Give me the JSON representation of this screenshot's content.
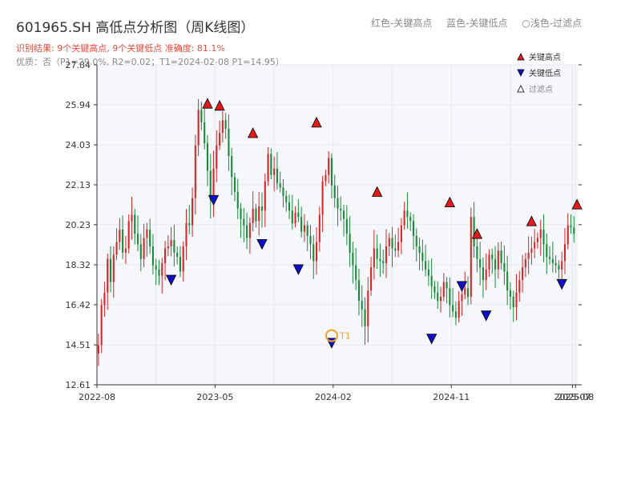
{
  "header": {
    "title": "601965.SH 高低点分析图（周K线图）",
    "legend_red": "红色-关键高点",
    "legend_blue": "蓝色-关键低点",
    "legend_filtered": "○浅色-过滤点",
    "result_text": "识别结果: 9个关键高点, 9个关键低点  准确度: 81.1%",
    "quality_text": "优质：否（P1=29.0%, R2=0.02；T1=2024-02-08 P1=14.95）"
  },
  "legend": {
    "high_label": "关键高点",
    "low_label": "关键低点",
    "filtered_label": "过滤点"
  },
  "colors": {
    "up": "#d62728",
    "down": "#1a8a3a",
    "high_marker": "#e31a1c",
    "low_marker": "#1010c8",
    "t1_marker": "#f0a030",
    "plot_bg": "#f5f7fa"
  },
  "chart_data": {
    "type": "candlestick",
    "y_ticks": [
      "12.61",
      "14.51",
      "16.42",
      "18.32",
      "20.23",
      "22.13",
      "24.03",
      "25.94",
      "27.84"
    ],
    "ylim": [
      12.61,
      27.84
    ],
    "x_ticks": [
      {
        "label": "2022-08",
        "week": 0
      },
      {
        "label": "2023-05",
        "week": 39
      },
      {
        "label": "2024-02",
        "week": 78
      },
      {
        "label": "2024-11",
        "week": 117
      },
      {
        "label": "2025-07",
        "week": 157
      },
      {
        "label": "2025-08",
        "week": 158
      }
    ],
    "x_range": [
      0,
      159
    ],
    "series_closes": [
      14.5,
      16.4,
      17.0,
      18.6,
      17.5,
      18.8,
      19.4,
      20.0,
      18.9,
      19.1,
      20.4,
      20.7,
      19.8,
      19.3,
      18.6,
      19.6,
      20.0,
      19.2,
      18.3,
      18.1,
      17.8,
      18.4,
      19.1,
      19.2,
      19.5,
      18.9,
      18.7,
      18.0,
      19.2,
      20.3,
      20.2,
      21.5,
      24.0,
      25.7,
      25.1,
      24.1,
      22.8,
      21.4,
      22.9,
      24.0,
      24.6,
      25.2,
      24.8,
      23.5,
      22.5,
      21.8,
      21.0,
      20.5,
      20.2,
      19.6,
      20.3,
      21.0,
      20.4,
      21.1,
      20.9,
      22.3,
      23.6,
      22.6,
      22.9,
      22.2,
      22.0,
      21.6,
      21.3,
      20.9,
      20.3,
      20.8,
      20.6,
      19.9,
      20.2,
      19.7,
      19.3,
      18.5,
      19.4,
      20.7,
      22.3,
      22.6,
      23.4,
      22.1,
      21.5,
      21.0,
      20.9,
      20.5,
      19.8,
      18.9,
      18.3,
      17.6,
      16.6,
      16.2,
      15.4,
      17.1,
      18.2,
      19.1,
      18.6,
      18.5,
      18.4,
      19.2,
      19.6,
      19.1,
      19.0,
      19.4,
      20.2,
      20.9,
      20.6,
      20.4,
      19.7,
      19.2,
      18.9,
      18.5,
      18.1,
      17.8,
      17.3,
      17.0,
      16.6,
      16.8,
      17.5,
      17.2,
      16.4,
      16.1,
      15.8,
      16.6,
      16.9,
      17.2,
      16.8,
      20.6,
      19.2,
      18.6,
      18.2,
      17.6,
      18.1,
      18.8,
      18.6,
      18.1,
      19.0,
      18.4,
      18.0,
      17.1,
      16.8,
      16.3,
      17.0,
      17.6,
      18.2,
      18.6,
      18.9,
      19.1,
      19.4,
      19.6,
      20.0,
      19.3,
      18.7,
      18.6,
      18.4,
      18.3,
      18.1,
      18.5,
      19.3,
      20.2,
      20.1,
      19.8
    ],
    "key_highs": [
      {
        "week": 36,
        "price": 25.7
      },
      {
        "week": 40,
        "price": 25.6
      },
      {
        "week": 51,
        "price": 24.3
      },
      {
        "week": 72,
        "price": 24.8
      },
      {
        "week": 92,
        "price": 21.5
      },
      {
        "week": 116,
        "price": 21.0
      },
      {
        "week": 125,
        "price": 19.5
      },
      {
        "week": 143,
        "price": 20.1
      },
      {
        "week": 158,
        "price": 20.9
      }
    ],
    "key_lows": [
      {
        "week": 24,
        "price": 17.9
      },
      {
        "week": 38,
        "price": 21.7
      },
      {
        "week": 54,
        "price": 19.6
      },
      {
        "week": 66,
        "price": 18.4
      },
      {
        "week": 77,
        "price": 14.9
      },
      {
        "week": 110,
        "price": 15.1
      },
      {
        "week": 120,
        "price": 17.6
      },
      {
        "week": 128,
        "price": 16.2
      },
      {
        "week": 153,
        "price": 17.7
      }
    ],
    "t1": {
      "week": 77,
      "price": 14.95,
      "label": "T1"
    }
  }
}
